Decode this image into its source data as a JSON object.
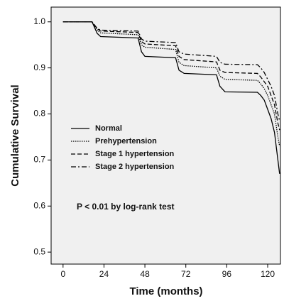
{
  "chart_data": {
    "type": "line",
    "xlabel": "Time (months)",
    "ylabel": "Cumulative Survival",
    "annotation": "P < 0.01 by log-rank test",
    "x": [
      0,
      17,
      20,
      22,
      44,
      46,
      48,
      66,
      68,
      71,
      90,
      92,
      95,
      114,
      116,
      118,
      120,
      122,
      124,
      125,
      126,
      127
    ],
    "series": [
      {
        "name": "Normal",
        "color": "#000000",
        "dash": "solid",
        "values": [
          1,
          1,
          0.975,
          0.968,
          0.965,
          0.935,
          0.925,
          0.922,
          0.895,
          0.888,
          0.885,
          0.86,
          0.848,
          0.847,
          0.84,
          0.83,
          0.81,
          0.79,
          0.76,
          0.73,
          0.7,
          0.67
        ]
      },
      {
        "name": "Prehypertension",
        "color": "#000000",
        "dash": "dotted",
        "values": [
          1,
          1,
          0.982,
          0.976,
          0.972,
          0.95,
          0.945,
          0.94,
          0.912,
          0.905,
          0.9,
          0.882,
          0.875,
          0.873,
          0.865,
          0.855,
          0.84,
          0.82,
          0.8,
          0.775,
          0.75,
          0.73
        ]
      },
      {
        "name": "Stage 1 hypertension",
        "color": "#000000",
        "dash": "dashed",
        "values": [
          1,
          1,
          0.985,
          0.98,
          0.977,
          0.957,
          0.952,
          0.948,
          0.925,
          0.918,
          0.913,
          0.895,
          0.89,
          0.888,
          0.88,
          0.87,
          0.86,
          0.84,
          0.82,
          0.8,
          0.78,
          0.765
        ]
      },
      {
        "name": "Stage 2 hypertension",
        "color": "#000000",
        "dash": "dashdot",
        "values": [
          1,
          1,
          0.986,
          0.982,
          0.98,
          0.963,
          0.958,
          0.955,
          0.935,
          0.93,
          0.925,
          0.912,
          0.908,
          0.907,
          0.9,
          0.89,
          0.875,
          0.86,
          0.84,
          0.82,
          0.8,
          0.785
        ]
      }
    ],
    "xlim": [
      -7,
      127.5
    ],
    "ylim": [
      0.474,
      1.032
    ],
    "xticks": [
      0,
      24,
      48,
      72,
      96,
      120
    ],
    "yticks": [
      0.5,
      0.6,
      0.7,
      0.8,
      0.9,
      {
        "value": 1,
        "label": "1.0"
      }
    ],
    "grid": false,
    "plot_background": "#f0f0f0"
  }
}
